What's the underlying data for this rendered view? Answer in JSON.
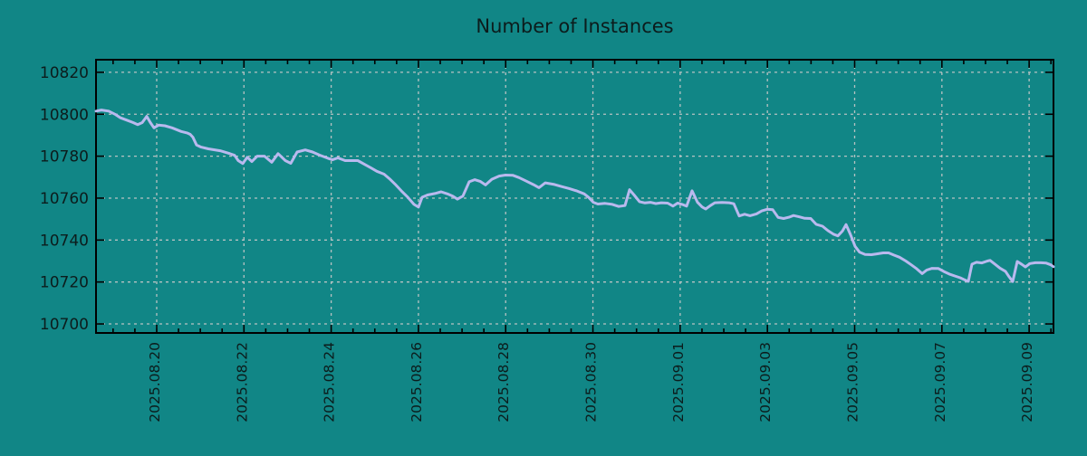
{
  "chart_data": {
    "type": "line",
    "title": "Number of Instances",
    "legend": "none",
    "grid": true,
    "x_axis": {
      "unit": "days since 2025-08-18 00:00",
      "lim": [
        0.609,
        22.558
      ],
      "minor_tick_step": 0.5,
      "major_ticks": [
        {
          "t": 2,
          "label": "2025.08.20"
        },
        {
          "t": 4,
          "label": "2025.08.22"
        },
        {
          "t": 6,
          "label": "2025.08.24"
        },
        {
          "t": 8,
          "label": "2025.08.26"
        },
        {
          "t": 10,
          "label": "2025.08.28"
        },
        {
          "t": 12,
          "label": "2025.08.30"
        },
        {
          "t": 14,
          "label": "2025.09.01"
        },
        {
          "t": 16,
          "label": "2025.09.03"
        },
        {
          "t": 18,
          "label": "2025.09.05"
        },
        {
          "t": 20,
          "label": "2025.09.07"
        },
        {
          "t": 22,
          "label": "2025.09.09"
        }
      ]
    },
    "y_axis": {
      "lim": [
        10695.7,
        10826.0
      ],
      "ticks": [
        10700,
        10720,
        10740,
        10760,
        10780,
        10800,
        10820
      ]
    },
    "colors": {
      "background": "#118686",
      "grid": "#c9c9c9",
      "axis": "#000000",
      "text": "#0c1c1c",
      "line": "#b9b9ee"
    },
    "series": [
      {
        "name": "instances",
        "color": "#b9b9ee",
        "points": [
          [
            0.609,
            10801.5
          ],
          [
            0.733,
            10802.0
          ],
          [
            0.899,
            10801.5
          ],
          [
            1.045,
            10800.0
          ],
          [
            1.169,
            10798.3
          ],
          [
            1.315,
            10797.2
          ],
          [
            1.46,
            10796.0
          ],
          [
            1.564,
            10795.0
          ],
          [
            1.668,
            10796.0
          ],
          [
            1.772,
            10799.0
          ],
          [
            1.855,
            10796.0
          ],
          [
            1.938,
            10793.5
          ],
          [
            2.042,
            10794.8
          ],
          [
            2.187,
            10794.5
          ],
          [
            2.353,
            10793.5
          ],
          [
            2.561,
            10791.8
          ],
          [
            2.706,
            10791.0
          ],
          [
            2.768,
            10790.4
          ],
          [
            2.831,
            10789.0
          ],
          [
            2.914,
            10785.3
          ],
          [
            3.018,
            10784.3
          ],
          [
            3.184,
            10783.5
          ],
          [
            3.454,
            10782.6
          ],
          [
            3.661,
            10781.3
          ],
          [
            3.786,
            10780.4
          ],
          [
            3.869,
            10777.9
          ],
          [
            3.973,
            10776.5
          ],
          [
            4.077,
            10779.5
          ],
          [
            4.181,
            10777.4
          ],
          [
            4.305,
            10780.0
          ],
          [
            4.471,
            10780.0
          ],
          [
            4.638,
            10777.1
          ],
          [
            4.783,
            10781.2
          ],
          [
            4.949,
            10777.9
          ],
          [
            5.074,
            10776.6
          ],
          [
            5.219,
            10782.0
          ],
          [
            5.406,
            10783.0
          ],
          [
            5.572,
            10782.0
          ],
          [
            5.738,
            10780.5
          ],
          [
            5.925,
            10779.0
          ],
          [
            6.029,
            10778.3
          ],
          [
            6.154,
            10779.2
          ],
          [
            6.32,
            10777.9
          ],
          [
            6.611,
            10777.9
          ],
          [
            6.777,
            10776.0
          ],
          [
            6.922,
            10774.3
          ],
          [
            7.047,
            10772.8
          ],
          [
            7.213,
            10771.4
          ],
          [
            7.337,
            10769.2
          ],
          [
            7.462,
            10766.7
          ],
          [
            7.607,
            10763.5
          ],
          [
            7.753,
            10760.5
          ],
          [
            7.898,
            10757.0
          ],
          [
            8.002,
            10755.7
          ],
          [
            8.085,
            10760.4
          ],
          [
            8.209,
            10761.5
          ],
          [
            8.376,
            10762.2
          ],
          [
            8.521,
            10763.0
          ],
          [
            8.666,
            10762.0
          ],
          [
            8.791,
            10760.9
          ],
          [
            8.895,
            10759.5
          ],
          [
            9.019,
            10761.0
          ],
          [
            9.165,
            10767.8
          ],
          [
            9.289,
            10768.8
          ],
          [
            9.414,
            10768.0
          ],
          [
            9.538,
            10766.3
          ],
          [
            9.684,
            10769.0
          ],
          [
            9.85,
            10770.5
          ],
          [
            9.995,
            10771.0
          ],
          [
            10.161,
            10770.9
          ],
          [
            10.307,
            10769.8
          ],
          [
            10.452,
            10768.3
          ],
          [
            10.639,
            10766.4
          ],
          [
            10.764,
            10765.0
          ],
          [
            10.909,
            10767.3
          ],
          [
            11.117,
            10766.5
          ],
          [
            11.283,
            10765.5
          ],
          [
            11.449,
            10764.6
          ],
          [
            11.636,
            10763.4
          ],
          [
            11.802,
            10762.0
          ],
          [
            11.906,
            10760.3
          ],
          [
            12.01,
            10758.0
          ],
          [
            12.113,
            10757.2
          ],
          [
            12.28,
            10757.5
          ],
          [
            12.446,
            10757.0
          ],
          [
            12.591,
            10756.0
          ],
          [
            12.737,
            10756.5
          ],
          [
            12.84,
            10764.0
          ],
          [
            12.944,
            10761.5
          ],
          [
            13.069,
            10758.3
          ],
          [
            13.193,
            10757.7
          ],
          [
            13.318,
            10758.0
          ],
          [
            13.443,
            10757.4
          ],
          [
            13.567,
            10757.8
          ],
          [
            13.713,
            10757.6
          ],
          [
            13.837,
            10756.2
          ],
          [
            13.941,
            10757.6
          ],
          [
            14.045,
            10757.0
          ],
          [
            14.149,
            10756.2
          ],
          [
            14.273,
            10763.5
          ],
          [
            14.398,
            10758.0
          ],
          [
            14.502,
            10755.8
          ],
          [
            14.585,
            10754.8
          ],
          [
            14.689,
            10756.4
          ],
          [
            14.793,
            10757.8
          ],
          [
            14.959,
            10757.9
          ],
          [
            15.125,
            10757.8
          ],
          [
            15.229,
            10757.3
          ],
          [
            15.353,
            10751.5
          ],
          [
            15.478,
            10752.3
          ],
          [
            15.602,
            10751.6
          ],
          [
            15.748,
            10752.5
          ],
          [
            15.872,
            10753.9
          ],
          [
            15.997,
            10754.7
          ],
          [
            16.121,
            10754.5
          ],
          [
            16.246,
            10750.8
          ],
          [
            16.371,
            10750.3
          ],
          [
            16.495,
            10750.9
          ],
          [
            16.599,
            10751.7
          ],
          [
            16.723,
            10751.1
          ],
          [
            16.848,
            10750.4
          ],
          [
            16.993,
            10750.3
          ],
          [
            17.118,
            10747.5
          ],
          [
            17.263,
            10746.6
          ],
          [
            17.388,
            10744.5
          ],
          [
            17.512,
            10742.8
          ],
          [
            17.616,
            10742.0
          ],
          [
            17.72,
            10744.3
          ],
          [
            17.803,
            10747.4
          ],
          [
            17.907,
            10742.5
          ],
          [
            18.011,
            10737.0
          ],
          [
            18.115,
            10734.2
          ],
          [
            18.239,
            10733.1
          ],
          [
            18.385,
            10733.0
          ],
          [
            18.509,
            10733.4
          ],
          [
            18.655,
            10733.9
          ],
          [
            18.779,
            10733.9
          ],
          [
            18.904,
            10732.8
          ],
          [
            19.028,
            10731.8
          ],
          [
            19.174,
            10730.0
          ],
          [
            19.298,
            10728.2
          ],
          [
            19.423,
            10726.3
          ],
          [
            19.548,
            10724.0
          ],
          [
            19.651,
            10725.7
          ],
          [
            19.776,
            10726.5
          ],
          [
            19.921,
            10726.4
          ],
          [
            20.046,
            10725.0
          ],
          [
            20.17,
            10723.8
          ],
          [
            20.295,
            10722.9
          ],
          [
            20.42,
            10722.0
          ],
          [
            20.544,
            10720.8
          ],
          [
            20.606,
            10720.3
          ],
          [
            20.689,
            10728.5
          ],
          [
            20.793,
            10729.4
          ],
          [
            20.918,
            10729.1
          ],
          [
            21.042,
            10730.0
          ],
          [
            21.105,
            10730.3
          ],
          [
            21.208,
            10728.6
          ],
          [
            21.333,
            10726.6
          ],
          [
            21.458,
            10725.1
          ],
          [
            21.541,
            10722.5
          ],
          [
            21.624,
            10720.2
          ],
          [
            21.728,
            10729.8
          ],
          [
            21.831,
            10728.4
          ],
          [
            21.914,
            10727.2
          ],
          [
            22.018,
            10728.8
          ],
          [
            22.143,
            10729.2
          ],
          [
            22.267,
            10729.2
          ],
          [
            22.392,
            10729.0
          ],
          [
            22.496,
            10728.2
          ],
          [
            22.558,
            10727.3
          ]
        ]
      }
    ]
  }
}
